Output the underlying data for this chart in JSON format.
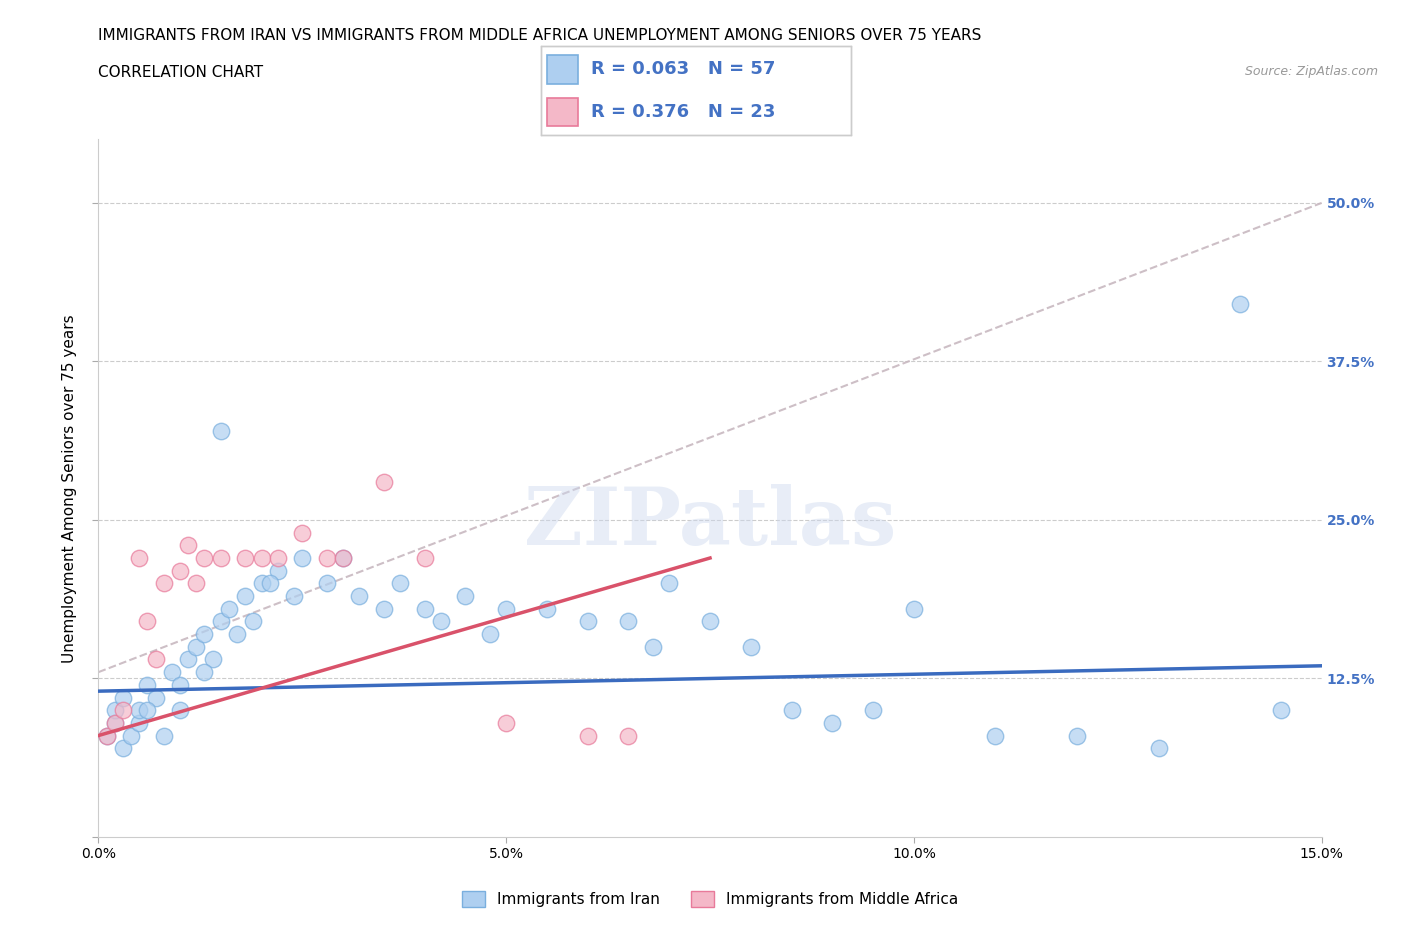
{
  "title_line1": "IMMIGRANTS FROM IRAN VS IMMIGRANTS FROM MIDDLE AFRICA UNEMPLOYMENT AMONG SENIORS OVER 75 YEARS",
  "title_line2": "CORRELATION CHART",
  "source_text": "Source: ZipAtlas.com",
  "ylabel": "Unemployment Among Seniors over 75 years",
  "legend_label1": "Immigrants from Iran",
  "legend_label2": "Immigrants from Middle Africa",
  "R1": 0.063,
  "N1": 57,
  "R2": 0.376,
  "N2": 23,
  "xlim": [
    0.0,
    0.15
  ],
  "ylim": [
    0.0,
    0.55
  ],
  "yticks": [
    0.0,
    0.125,
    0.25,
    0.375,
    0.5
  ],
  "ytick_labels": [
    "",
    "12.5%",
    "25.0%",
    "37.5%",
    "50.0%"
  ],
  "xticks": [
    0.0,
    0.05,
    0.1,
    0.15
  ],
  "xtick_labels": [
    "0.0%",
    "5.0%",
    "10.0%",
    "15.0%"
  ],
  "color_iran": "#aecff0",
  "color_africa": "#f4b8c8",
  "color_iran_edge": "#7aafde",
  "color_africa_edge": "#e87a9a",
  "color_iran_line": "#3a6bbf",
  "color_africa_line": "#d9526a",
  "color_diag_line": "#c8b8c0",
  "iran_x": [
    0.001,
    0.002,
    0.003,
    0.002,
    0.003,
    0.004,
    0.005,
    0.005,
    0.006,
    0.007,
    0.008,
    0.006,
    0.009,
    0.01,
    0.011,
    0.01,
    0.012,
    0.013,
    0.014,
    0.015,
    0.013,
    0.016,
    0.017,
    0.015,
    0.018,
    0.02,
    0.019,
    0.022,
    0.021,
    0.025,
    0.024,
    0.03,
    0.028,
    0.032,
    0.035,
    0.037,
    0.04,
    0.042,
    0.045,
    0.048,
    0.05,
    0.055,
    0.06,
    0.065,
    0.068,
    0.07,
    0.075,
    0.08,
    0.085,
    0.09,
    0.095,
    0.1,
    0.11,
    0.12,
    0.13,
    0.14,
    0.145
  ],
  "iran_y": [
    0.08,
    0.09,
    0.07,
    0.1,
    0.11,
    0.08,
    0.09,
    0.1,
    0.12,
    0.11,
    0.08,
    0.1,
    0.13,
    0.12,
    0.14,
    0.1,
    0.15,
    0.16,
    0.14,
    0.17,
    0.13,
    0.18,
    0.16,
    0.32,
    0.19,
    0.2,
    0.17,
    0.21,
    0.2,
    0.22,
    0.19,
    0.22,
    0.2,
    0.19,
    0.18,
    0.2,
    0.18,
    0.17,
    0.19,
    0.16,
    0.18,
    0.18,
    0.17,
    0.17,
    0.15,
    0.2,
    0.17,
    0.15,
    0.1,
    0.09,
    0.1,
    0.18,
    0.08,
    0.08,
    0.07,
    0.42,
    0.1
  ],
  "africa_x": [
    0.001,
    0.002,
    0.003,
    0.005,
    0.006,
    0.007,
    0.008,
    0.01,
    0.011,
    0.013,
    0.012,
    0.015,
    0.018,
    0.02,
    0.022,
    0.025,
    0.028,
    0.03,
    0.035,
    0.04,
    0.05,
    0.06,
    0.065
  ],
  "africa_y": [
    0.08,
    0.09,
    0.1,
    0.22,
    0.17,
    0.14,
    0.2,
    0.21,
    0.23,
    0.22,
    0.2,
    0.22,
    0.22,
    0.22,
    0.22,
    0.24,
    0.22,
    0.22,
    0.28,
    0.22,
    0.09,
    0.08,
    0.08
  ],
  "iran_trend_x": [
    0.0,
    0.15
  ],
  "iran_trend_y": [
    0.115,
    0.135
  ],
  "africa_trend_x": [
    0.0,
    0.075
  ],
  "africa_trend_y": [
    0.08,
    0.22
  ],
  "diag_line_x": [
    0.0,
    0.15
  ],
  "diag_line_y": [
    0.13,
    0.5
  ],
  "watermark": "ZIPatlas",
  "watermark_color": "#ccd8ee",
  "title_fontsize": 11,
  "axis_label_fontsize": 11,
  "tick_fontsize": 10,
  "legend_stat_fontsize": 13,
  "legend_R_color": "#4472c4",
  "legend_N_color": "#4472c4"
}
